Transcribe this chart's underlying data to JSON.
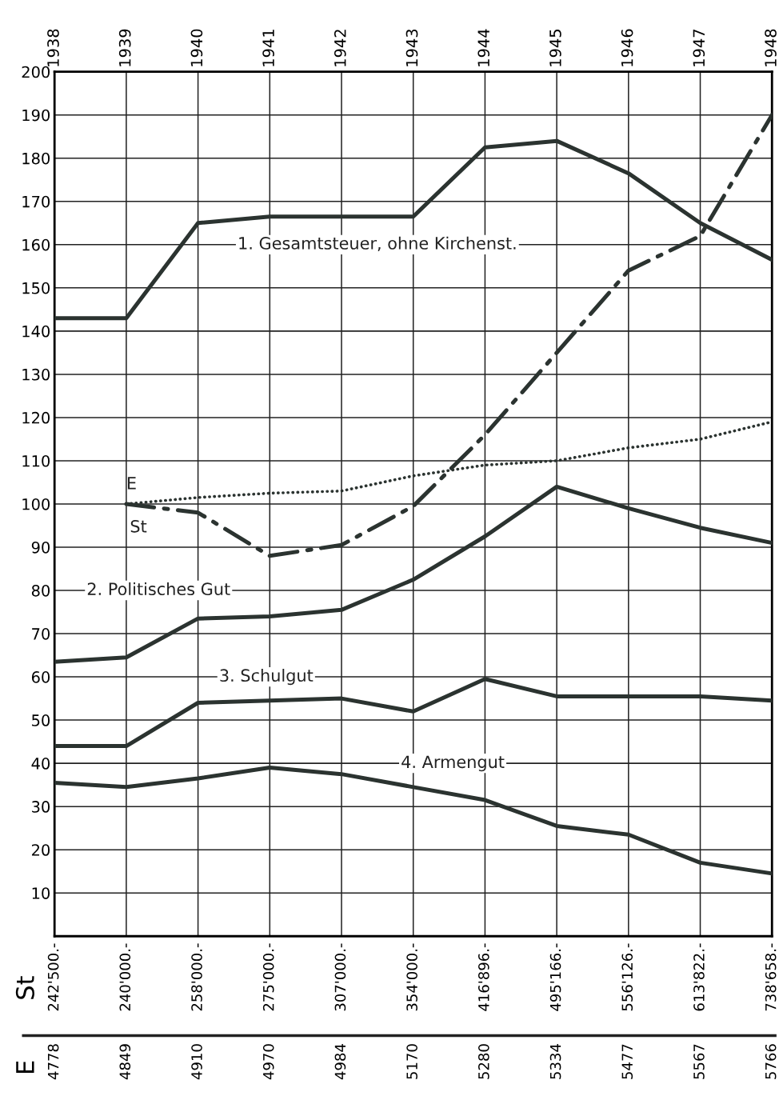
{
  "chart_data": {
    "type": "line",
    "categories": [
      "1938",
      "1939",
      "1940",
      "1941",
      "1942",
      "1943",
      "1944",
      "1945",
      "1946",
      "1947",
      "1948"
    ],
    "series": [
      {
        "name": "1. Gesamtsteuer, ohne Kirchenst.",
        "color": "#2b3330",
        "line_style": "solid",
        "values": [
          143,
          143,
          165,
          166.5,
          166.5,
          166.5,
          182.5,
          184,
          176.5,
          165,
          156.5
        ]
      },
      {
        "name": "E",
        "color": "#2b3330",
        "line_style": "dotted",
        "values": [
          null,
          100,
          101.5,
          102.5,
          103,
          106.5,
          109,
          110,
          113,
          115,
          119
        ]
      },
      {
        "name": "St",
        "color": "#2b3330",
        "line_style": "dashed",
        "values": [
          null,
          100,
          98,
          88,
          90.5,
          99.5,
          116,
          135,
          154,
          162,
          190
        ]
      },
      {
        "name": "2. Politisches Gut",
        "color": "#2b3330",
        "line_style": "solid",
        "values": [
          63.5,
          64.5,
          73.5,
          74,
          75.5,
          82.5,
          92.5,
          104,
          99,
          94.5,
          91
        ]
      },
      {
        "name": "3. Schulgut",
        "color": "#2b3330",
        "line_style": "solid",
        "values": [
          44,
          44,
          54,
          54.5,
          55,
          52,
          59.5,
          55.5,
          55.5,
          55.5,
          54.5
        ]
      },
      {
        "name": "4. Armengut",
        "color": "#2b3330",
        "line_style": "solid",
        "values": [
          35.5,
          34.5,
          36.5,
          39,
          37.5,
          34.5,
          31.5,
          25.5,
          23.5,
          17,
          14.5
        ]
      }
    ],
    "ylim": [
      0,
      200
    ],
    "yticks": [
      10,
      20,
      30,
      40,
      50,
      60,
      70,
      80,
      90,
      100,
      110,
      120,
      130,
      140,
      150,
      160,
      170,
      180,
      190,
      200
    ],
    "grid": true,
    "legend": false,
    "marker": "none",
    "annotations": [
      "St",
      "242'500.-",
      "240'000.-",
      "258'000.-",
      "275'000.-",
      "307'000.-",
      "354'000.-",
      "416'896.-",
      "495'166.-",
      "556'126.-",
      "613'822.-",
      "738'658.-",
      "E",
      "4778",
      "4849",
      "4910",
      "4970",
      "4984",
      "5170",
      "5280",
      "5334",
      "5477",
      "5567",
      "5766"
    ]
  }
}
